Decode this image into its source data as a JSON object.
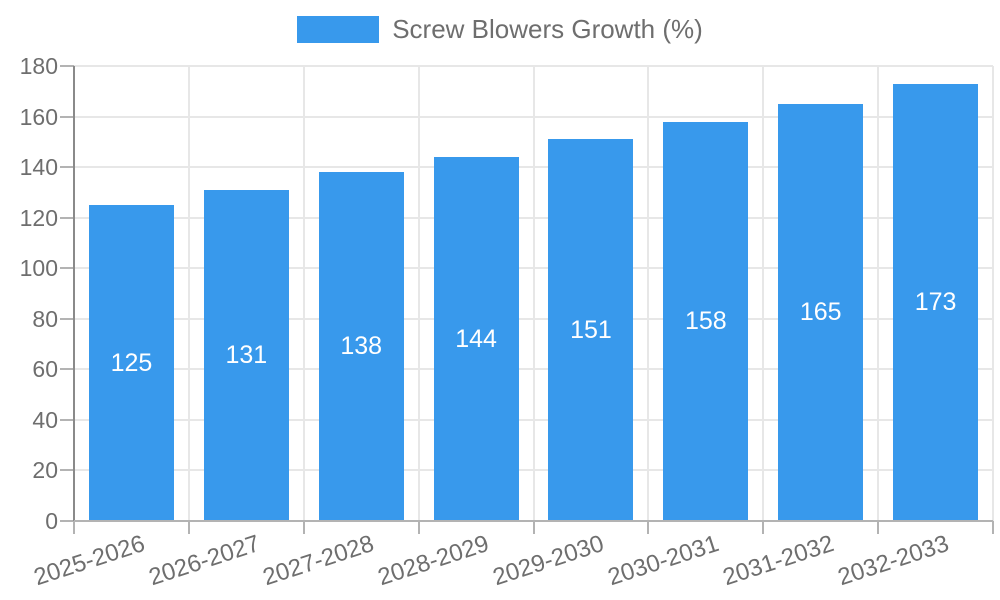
{
  "chart_data": {
    "type": "bar",
    "title": "Screw Blowers Growth (%)",
    "legend": {
      "label": "Screw Blowers Growth (%)",
      "position": "top"
    },
    "categories": [
      "2025-2026",
      "2026-2027",
      "2027-2028",
      "2028-2029",
      "2029-2030",
      "2030-2031",
      "2031-2032",
      "2032-2033"
    ],
    "series": [
      {
        "name": "Screw Blowers Growth (%)",
        "values": [
          125,
          131,
          138,
          144,
          151,
          158,
          165,
          173
        ]
      }
    ],
    "value_label_placement": "inside-center",
    "xlabel": "",
    "ylabel": "",
    "ylim": [
      0,
      180
    ],
    "yticks": [
      0,
      20,
      40,
      60,
      80,
      100,
      120,
      140,
      160,
      180
    ],
    "grid": true,
    "colors": {
      "bar": "#3899EC",
      "value_label": "#FFFFFF",
      "axis_text": "#6E6E6E",
      "grid_line": "#E7E7E7",
      "y_axis_line": "#8A8A8A",
      "x_axis_line": "#B3B3B3",
      "tick": "#B3B3B3"
    }
  }
}
